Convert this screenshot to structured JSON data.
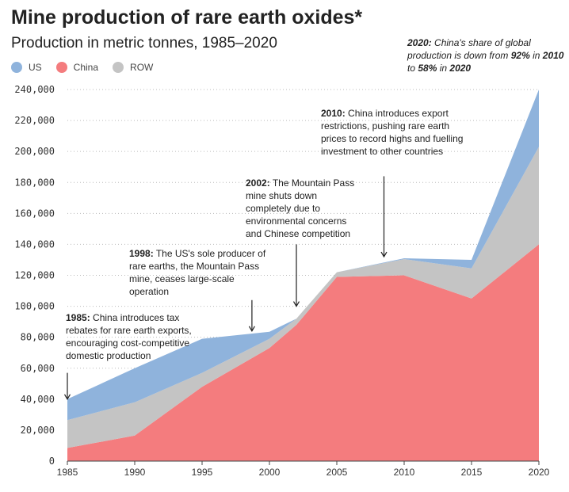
{
  "header": {
    "title": "Mine production of rare earth oxides*",
    "subtitle": "Production in metric tonnes, 1985–2020"
  },
  "legend": [
    {
      "name": "US",
      "color": "#8fb3dc"
    },
    {
      "name": "China",
      "color": "#f47c7e"
    },
    {
      "name": "ROW",
      "color": "#c4c4c4"
    }
  ],
  "top_note": {
    "bold1": "2020:",
    "text1": " China's share of global production is down from ",
    "bold2": "92%",
    "text2": " in ",
    "bold3": "2010",
    "text3": " to ",
    "bold4": "58%",
    "text4": " in ",
    "bold5": "2020"
  },
  "annotations": [
    {
      "year": "1985:",
      "text": " China introduces tax rebates for rare earth exports, encouraging cost-competitive domestic production"
    },
    {
      "year": "1998:",
      "text": " The US's sole producer of rare earths, the Mountain Pass mine, ceases large-scale operation"
    },
    {
      "year": "2002:",
      "text": " The Mountain Pass mine shuts down completely due to environmental concerns and Chinese competition"
    },
    {
      "year": "2010:",
      "text": " China introduces export restrictions, pushing rare earth prices to record highs and fuelling investment to other countries"
    }
  ],
  "chart_data": {
    "type": "area",
    "stacked": true,
    "x": [
      1985,
      1990,
      1995,
      2000,
      2002,
      2005,
      2010,
      2015,
      2020
    ],
    "series": [
      {
        "name": "China",
        "color": "#f47c7e",
        "values": [
          8500,
          16500,
          48000,
          73000,
          88000,
          119000,
          120000,
          105000,
          140000
        ]
      },
      {
        "name": "ROW",
        "color": "#c4c4c4",
        "values": [
          18000,
          21500,
          9000,
          6000,
          4000,
          3000,
          10500,
          19500,
          63000
        ]
      },
      {
        "name": "US",
        "color": "#8fb3dc",
        "values": [
          13500,
          22000,
          22000,
          4500,
          0,
          0,
          500,
          5500,
          37000
        ]
      }
    ],
    "x_ticks": [
      "1985",
      "1990",
      "1995",
      "2000",
      "2005",
      "2010",
      "2015",
      "2020"
    ],
    "y_ticks": [
      "0",
      "20,000",
      "40,000",
      "60,000",
      "80,000",
      "100,000",
      "120,000",
      "140,000",
      "160,000",
      "180,000",
      "200,000",
      "220,000",
      "240,000"
    ],
    "xlim": [
      1985,
      2020
    ],
    "ylim": [
      0,
      240000
    ],
    "grid": "horizontal dotted",
    "arrows": [
      {
        "x": 1985,
        "from_y": 57000,
        "to_y": 40000
      },
      {
        "x": 1998.7,
        "from_y": 104000,
        "to_y": 84000
      },
      {
        "x": 2002,
        "from_y": 140000,
        "to_y": 100000
      },
      {
        "x": 2008.5,
        "from_y": 184000,
        "to_y": 132000
      }
    ]
  }
}
